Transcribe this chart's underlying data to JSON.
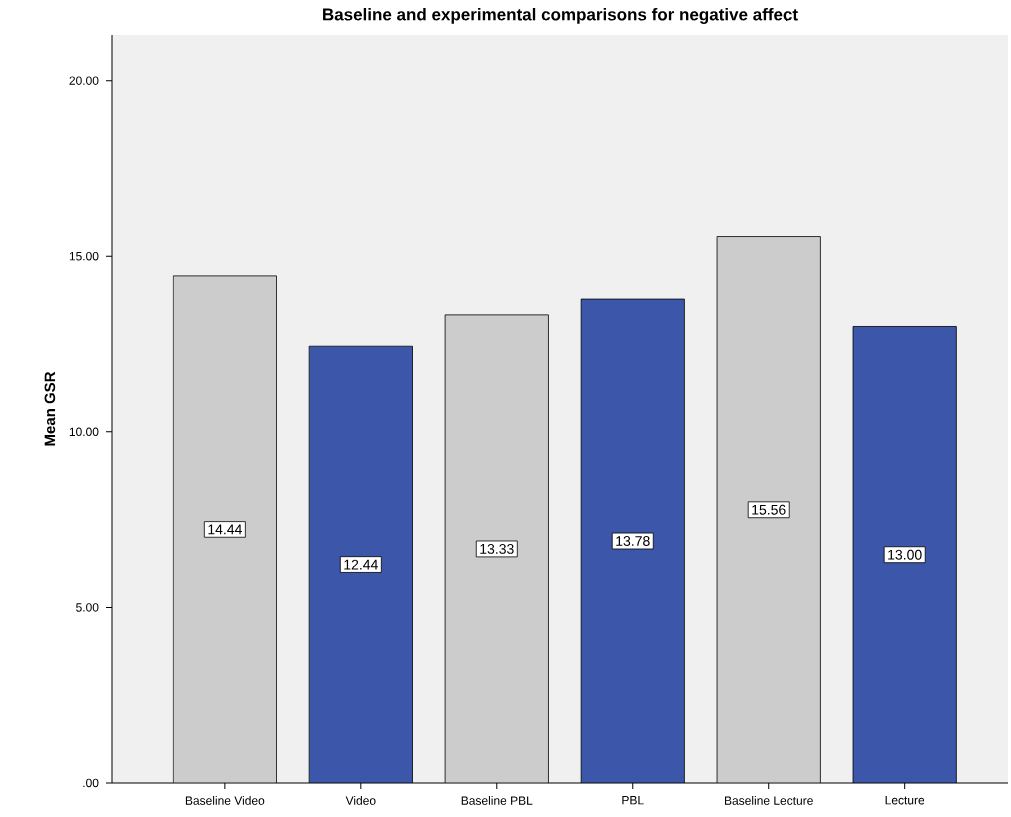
{
  "chart_data": {
    "type": "bar",
    "title": "Baseline and experimental comparisons for negative affect",
    "ylabel": "Mean GSR",
    "categories": [
      "Baseline Video",
      "Video",
      "Baseline PBL",
      "PBL",
      "Baseline Lecture",
      "Lecture"
    ],
    "values": [
      14.44,
      12.44,
      13.33,
      13.78,
      15.56,
      13.0
    ],
    "value_labels": [
      "14.44",
      "12.44",
      "13.33",
      "13.78",
      "15.56",
      "13.00"
    ],
    "colors": [
      "#cccccc",
      "#3c56a9",
      "#cccccc",
      "#3c56a9",
      "#cccccc",
      "#3c56a9"
    ],
    "ylim": [
      0,
      21.3
    ],
    "yticks": [
      {
        "value": 0,
        "label": ".00"
      },
      {
        "value": 5,
        "label": "5.00"
      },
      {
        "value": 10,
        "label": "10.00"
      },
      {
        "value": 15,
        "label": "15.00"
      },
      {
        "value": 20,
        "label": "20.00"
      }
    ],
    "grid": false
  }
}
